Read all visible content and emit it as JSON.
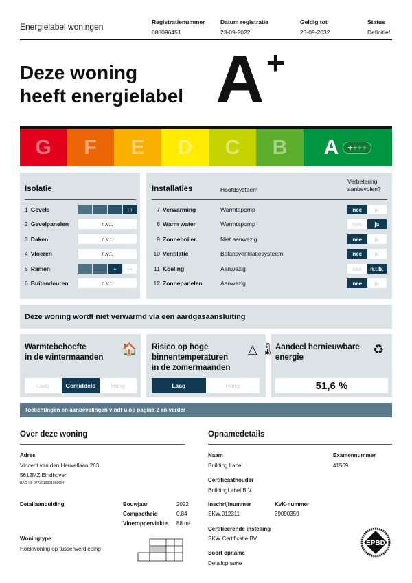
{
  "header": {
    "title": "Energielabel woningen",
    "columns": [
      {
        "label": "Registratienummer",
        "value": "688096451"
      },
      {
        "label": "Datum registratie",
        "value": "23-09-2022"
      },
      {
        "label": "Geldig tot",
        "value": "23-09-2032"
      },
      {
        "label": "Status",
        "value": "Definitief"
      }
    ]
  },
  "headline": {
    "line1": "Deze woning",
    "line2": "heeft energielabel",
    "label": "A",
    "plus": "+"
  },
  "energy_scale": {
    "classes": [
      {
        "letter": "G",
        "color": "#e3001b"
      },
      {
        "letter": "F",
        "color": "#ec6608"
      },
      {
        "letter": "E",
        "color": "#f9b000"
      },
      {
        "letter": "D",
        "color": "#ffec00"
      },
      {
        "letter": "C",
        "color": "#c5d400"
      },
      {
        "letter": "B",
        "color": "#5cad2c"
      },
      {
        "letter": "A",
        "color": "#009640"
      }
    ],
    "active": "A",
    "pill_on": "+",
    "pill_off": "+++"
  },
  "isolatie": {
    "title": "Isolatie",
    "rows": [
      {
        "num": "1",
        "name": "Gevels",
        "value": "++"
      },
      {
        "num": "2",
        "name": "Gevelpanelen",
        "value": "n.v.t."
      },
      {
        "num": "3",
        "name": "Daken",
        "value": "n.v.t."
      },
      {
        "num": "4",
        "name": "Vloeren",
        "value": "n.v.t."
      },
      {
        "num": "5",
        "name": "Ramen",
        "value": "+",
        "next": "++"
      },
      {
        "num": "6",
        "name": "Buitendeuren",
        "value": "n.v.t."
      }
    ]
  },
  "installaties": {
    "title": "Installaties",
    "col_system": "Hoofdsysteem",
    "col_improve_1": "Verbetering",
    "col_improve_2": "aanbevolen?",
    "rows": [
      {
        "num": "7",
        "name": "Verwarming",
        "system": "Warmtepomp",
        "no": "nee",
        "yes": "ja",
        "selected": "no"
      },
      {
        "num": "8",
        "name": "Warm water",
        "system": "Warmtepomp",
        "no": "nee",
        "yes": "ja",
        "selected": "yes"
      },
      {
        "num": "9",
        "name": "Zonneboiler",
        "system": "Niet aanwezig",
        "no": "nee",
        "yes": "ja",
        "selected": "no"
      },
      {
        "num": "10",
        "name": "Ventilatie",
        "system": "Balansventilatiesysteem",
        "no": "nee",
        "yes": "ja",
        "selected": "no"
      },
      {
        "num": "11",
        "name": "Koeling",
        "system": "Aanwezig",
        "no": "nee",
        "yes": "n.t.b.",
        "selected": "yes"
      },
      {
        "num": "12",
        "name": "Zonnepanelen",
        "system": "Aanwezig",
        "no": "nee",
        "yes": "ja",
        "selected": "no"
      }
    ]
  },
  "gas_banner": "Deze woning wordt niet verwarmd via een aardgasaansluiting",
  "cards": {
    "heat": {
      "line1": "Warmtebehoefte",
      "line2": "in de wintermaanden",
      "options": [
        "Laag",
        "Gemiddeld",
        "Hoog"
      ],
      "selected": "Gemiddeld",
      "icon": "house-heat-icon"
    },
    "overheat": {
      "line1": "Risico op hoge",
      "line2": "binnentemperaturen",
      "line3": "in de zomermaanden",
      "options": [
        "Laag",
        "Hoog"
      ],
      "selected": "Laag",
      "icon": "thermometer-warning-icon"
    },
    "renewable": {
      "line1": "Aandeel hernieuwbare",
      "line2": "energie",
      "value": "51,6 %",
      "icon": "renewable-cycle-icon"
    }
  },
  "info_bar": "Toelichtingen en aanbevelingen vindt u op pagina 2 en verder",
  "woning": {
    "title": "Over deze woning",
    "address_label": "Adres",
    "address_1": "Vincent van den Heuvellaan 263",
    "address_2": "5612MZ Eindhoven",
    "bag_id": "BAG-ID: 0772010001068694",
    "detail_label": "Detailaanduiding",
    "bouwjaar_label": "Bouwjaar",
    "bouwjaar": "2022",
    "compact_label": "Compactheid",
    "compact": "0,84",
    "floor_label": "Vloeroppervlakte",
    "floor": "88 m²",
    "type_label": "Woningtype",
    "type": "Hoekwoning op tussenverdieping"
  },
  "opname": {
    "title": "Opnamedetails",
    "naam_label": "Naam",
    "naam": "Building Label",
    "exam_label": "Examennummer",
    "exam": "41569",
    "holder_label": "Certificaathouder",
    "holder": "BuildingLabel B.V.",
    "reg_label": "Inschrijfnummer",
    "reg": "SKW.012311",
    "kvk_label": "KvK-nummer",
    "kvk": "39090359",
    "inst_label": "Certificerende instelling",
    "inst": "SKW Certificatie BV",
    "type_label": "Soort opname",
    "type": "Detailopname",
    "logo_text": "EPBD"
  }
}
